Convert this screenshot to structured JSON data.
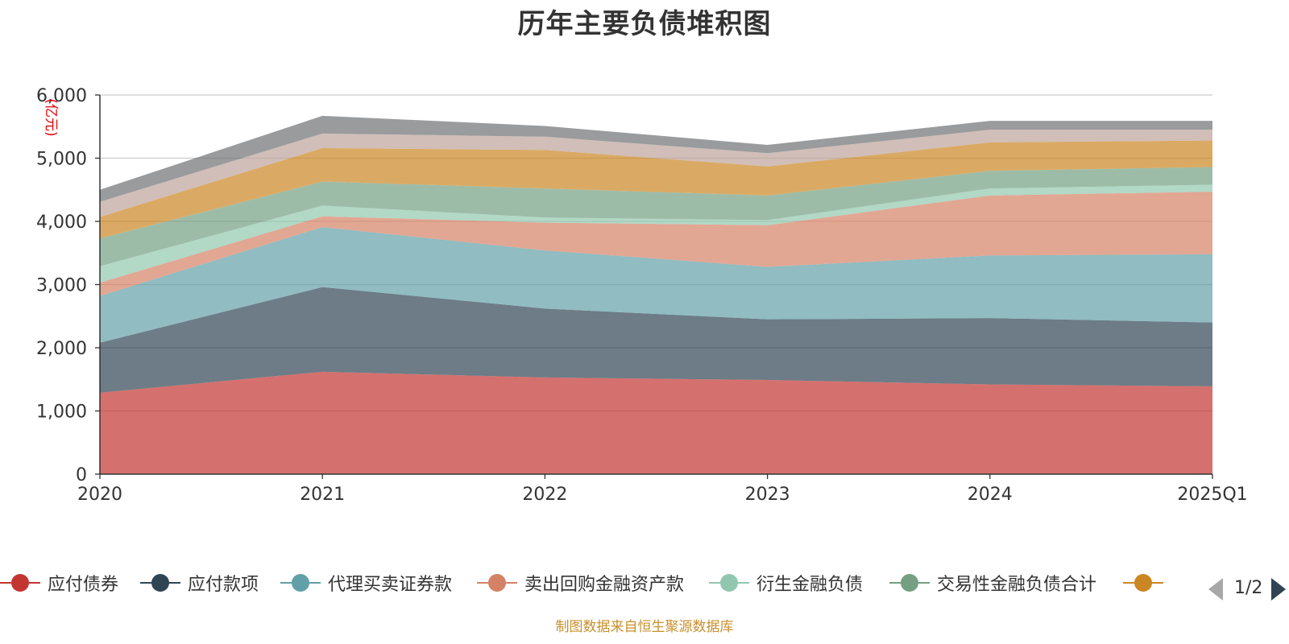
{
  "chart_data": {
    "type": "area",
    "title": "历年主要负债堆积图",
    "ylabel": "(亿元)",
    "xlabel": "",
    "categories": [
      "2020",
      "2021",
      "2022",
      "2023",
      "2024",
      "2025Q1"
    ],
    "yticks": [
      "0",
      "1,000",
      "2,000",
      "3,000",
      "4,000",
      "5,000",
      "6,000"
    ],
    "ylim": [
      0,
      6000
    ],
    "stacked": true,
    "grid": true,
    "legend_position": "bottom",
    "series": [
      {
        "name": "应付债券",
        "color": "#c23531",
        "values": [
          1290,
          1620,
          1530,
          1490,
          1420,
          1390
        ]
      },
      {
        "name": "应付款项",
        "color": "#2f4554",
        "values": [
          790,
          1340,
          1090,
          960,
          1050,
          1010
        ]
      },
      {
        "name": "代理买卖证券款",
        "color": "#61a0a8",
        "values": [
          740,
          950,
          920,
          830,
          990,
          1080
        ]
      },
      {
        "name": "卖出回购金融资产款",
        "color": "#d48265",
        "values": [
          210,
          170,
          440,
          660,
          950,
          990
        ]
      },
      {
        "name": "衍生金融负债",
        "color": "#91c7ae",
        "values": [
          260,
          170,
          80,
          80,
          110,
          110
        ]
      },
      {
        "name": "交易性金融负债合计",
        "color": "#749f83",
        "values": [
          440,
          380,
          460,
          390,
          280,
          280
        ]
      },
      {
        "name": "",
        "color": "#ca8622",
        "values": [
          340,
          530,
          610,
          460,
          450,
          420
        ]
      },
      {
        "name": "",
        "color": "#bda29a",
        "values": [
          240,
          230,
          210,
          210,
          200,
          170
        ]
      },
      {
        "name": "",
        "color": "#6e7074",
        "values": [
          190,
          280,
          170,
          130,
          140,
          140
        ]
      }
    ]
  },
  "legend_page": "1/2",
  "source_text": "制图数据来自恒生聚源数据库"
}
